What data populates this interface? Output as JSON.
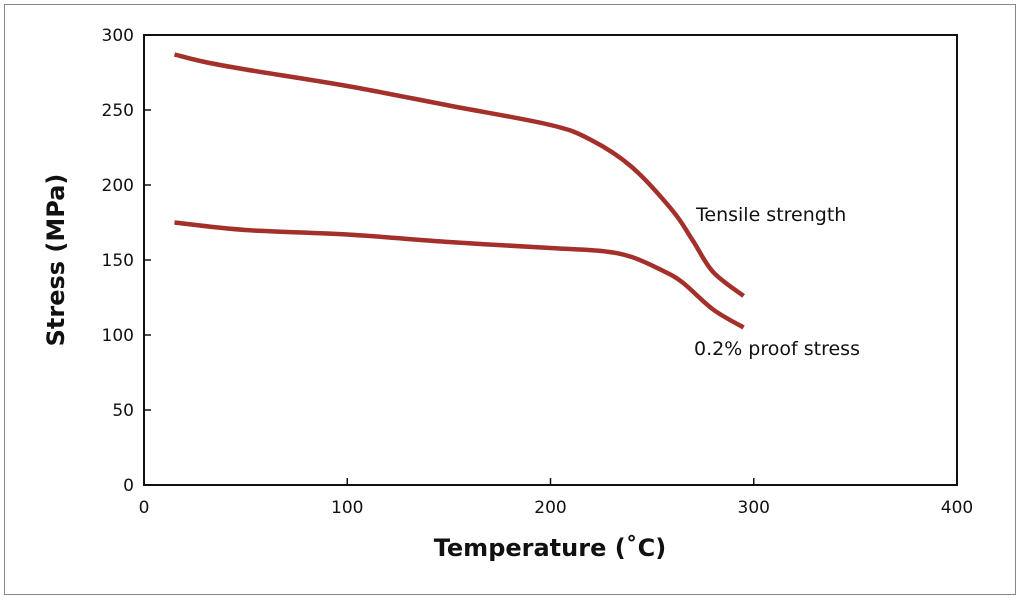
{
  "chart_data": {
    "type": "line",
    "title": "",
    "xlabel": "Temperature (˚C)",
    "ylabel": "Stress (MPa)",
    "xlim": [
      0,
      400
    ],
    "ylim": [
      0,
      300
    ],
    "xticks": [
      "0",
      "100",
      "200",
      "300",
      "400"
    ],
    "yticks": [
      "0",
      "50",
      "100",
      "150",
      "200",
      "250",
      "300"
    ],
    "grid": false,
    "line_color": "#a3302a",
    "series": [
      {
        "name": "Tensile strength",
        "x": [
          15,
          30,
          50,
          100,
          150,
          200,
          220,
          240,
          260,
          270,
          280,
          295
        ],
        "y": [
          287,
          282,
          277,
          266,
          253,
          240,
          230,
          212,
          183,
          163,
          142,
          126
        ]
      },
      {
        "name": "0.2% proof stress",
        "x": [
          15,
          50,
          100,
          150,
          200,
          225,
          240,
          255,
          265,
          280,
          295
        ],
        "y": [
          175,
          170,
          167,
          162,
          158,
          156,
          152,
          143,
          135,
          117,
          105
        ]
      }
    ]
  }
}
